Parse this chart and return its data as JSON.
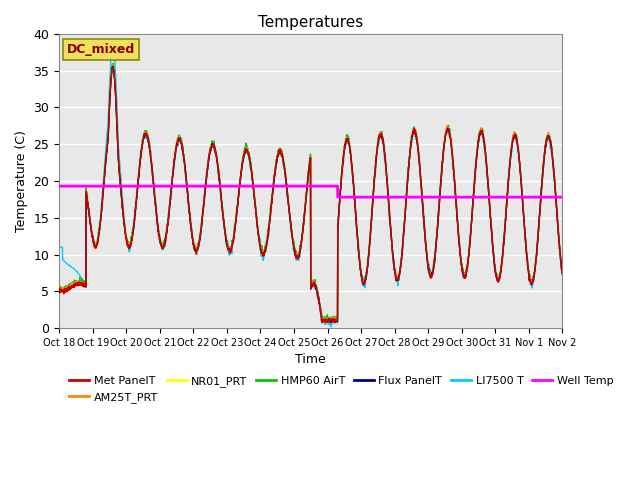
{
  "title": "Temperatures",
  "xlabel": "Time",
  "ylabel": "Temperature (C)",
  "ylim": [
    0,
    40
  ],
  "bg_color": "#e8e8e8",
  "fig_bg": "#ffffff",
  "annotation_text": "DC_mixed",
  "annotation_color": "#8B0000",
  "annotation_bg": "#f0e060",
  "series_colors": {
    "Met PanelT": "#cc0000",
    "AM25T_PRT": "#ff8800",
    "NR01_PRT": "#ffff00",
    "HMP60 AirT": "#00cc00",
    "Flux PanelT": "#00008b",
    "LI7500 T": "#00ccff",
    "Well Temp": "#ff00ff"
  },
  "well_temp_val1": 19.3,
  "well_temp_val2": 17.8,
  "well_temp_break_day": 8.3,
  "n_days": 15,
  "start_day": 18
}
